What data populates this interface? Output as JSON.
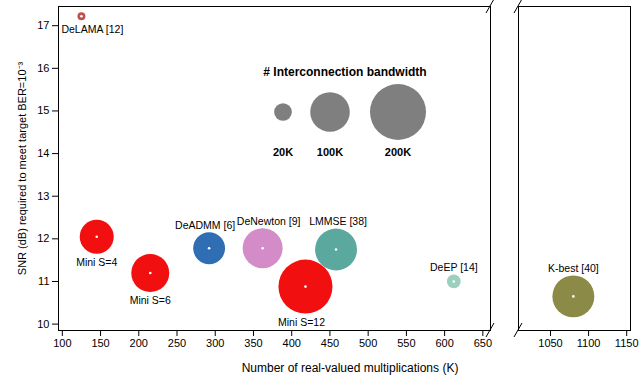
{
  "chart_data": {
    "type": "scatter",
    "x_label": "Number of real-valued multiplications (K)",
    "y_label": "SNR (dB) required to meet target BER=10⁻³",
    "xlim": [
      [
        95,
        660
      ],
      [
        1008,
        1155
      ]
    ],
    "xticks": [
      100,
      150,
      200,
      250,
      300,
      350,
      400,
      450,
      500,
      550,
      600,
      650,
      1050,
      1100,
      1150
    ],
    "ylim": [
      9.85,
      17.45
    ],
    "yticks": [
      10,
      11,
      12,
      13,
      14,
      15,
      16,
      17
    ],
    "labels": [
      "DeLAMA [12]",
      "Mini S=4",
      "Mini S=6",
      "DeADMM [6]",
      "DeNewton [9]",
      "LMMSE [38]",
      "Mini S=12",
      "DeEP [14]",
      "K-best [40]"
    ],
    "x": [
      125,
      145,
      215,
      292,
      362,
      458,
      418,
      612,
      1080
    ],
    "values": [
      17.22,
      12.05,
      11.2,
      11.78,
      11.78,
      11.75,
      10.88,
      11.0,
      10.65
    ],
    "interconnection_bandwidth": [
      4,
      74,
      92,
      65,
      102,
      112,
      186,
      12,
      112
    ],
    "colors": [
      "#c0504d",
      "#f20f0f",
      "#f20f0f",
      "#2f6eb3",
      "#d38cc8",
      "#5aa89e",
      "#f20f0f",
      "#9bcfbf",
      "#8c8a47"
    ],
    "size_legend": {
      "title": "# Interconnection bandwidth",
      "values": [
        20,
        100,
        200
      ],
      "labels": [
        "20K",
        "100K",
        "200K"
      ],
      "color": "#7f7f7f"
    }
  }
}
